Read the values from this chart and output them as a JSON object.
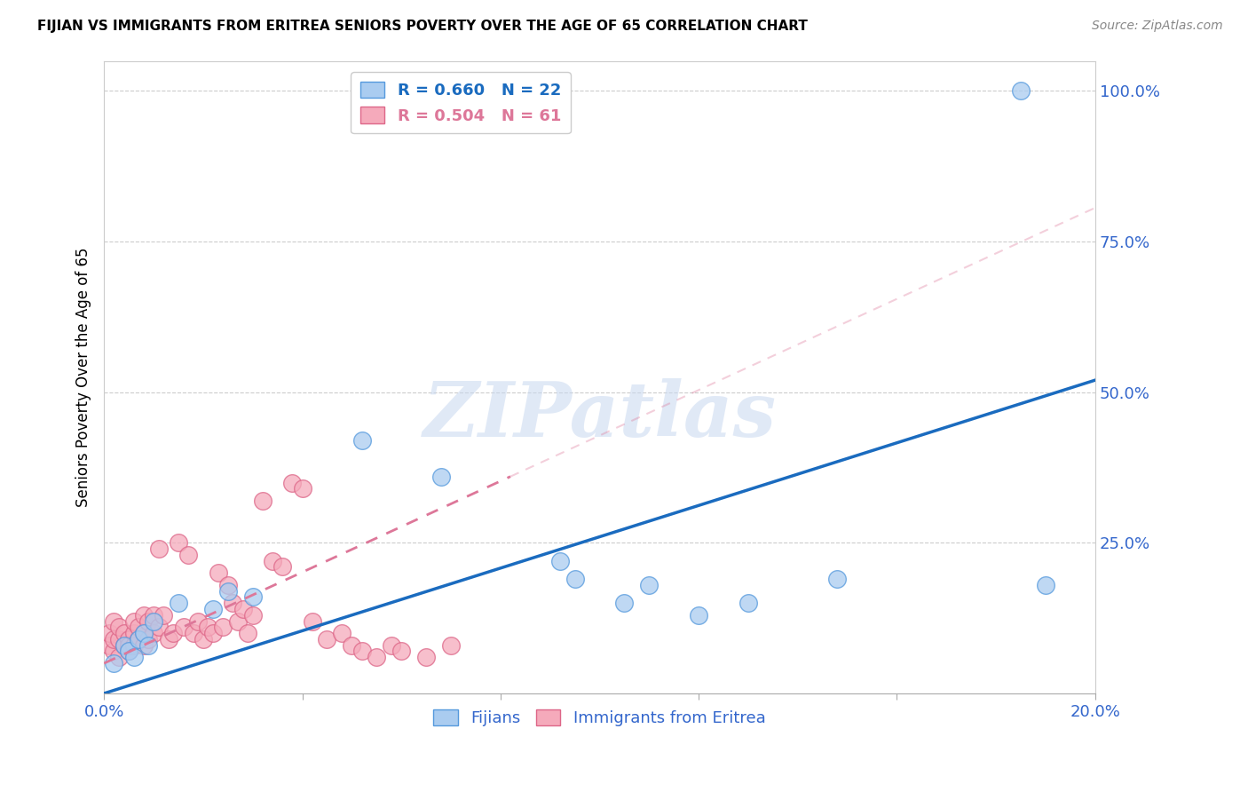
{
  "title": "FIJIAN VS IMMIGRANTS FROM ERITREA SENIORS POVERTY OVER THE AGE OF 65 CORRELATION CHART",
  "source": "Source: ZipAtlas.com",
  "ylabel": "Seniors Poverty Over the Age of 65",
  "xlim": [
    0.0,
    0.2
  ],
  "ylim": [
    0.0,
    1.05
  ],
  "xticks": [
    0.0,
    0.04,
    0.08,
    0.12,
    0.16,
    0.2
  ],
  "xticklabels": [
    "0.0%",
    "",
    "",
    "",
    "",
    "20.0%"
  ],
  "ytick_positions": [
    0.25,
    0.5,
    0.75,
    1.0
  ],
  "ytick_labels": [
    "25.0%",
    "50.0%",
    "75.0%",
    "100.0%"
  ],
  "fijian_color": "#aaccf0",
  "eritrea_color": "#f5aabb",
  "fijian_edge_color": "#5599dd",
  "eritrea_edge_color": "#dd6688",
  "fijian_line_color": "#1a6bbf",
  "eritrea_line_color": "#dd7799",
  "watermark": "ZIPatlas",
  "watermark_color": "#c8d8f0",
  "tick_color": "#3366cc",
  "title_fontsize": 11,
  "tick_fontsize": 13,
  "fijian_x": [
    0.002,
    0.004,
    0.005,
    0.006,
    0.007,
    0.008,
    0.009,
    0.01,
    0.015,
    0.022,
    0.025,
    0.03,
    0.052,
    0.068,
    0.092,
    0.095,
    0.105,
    0.11,
    0.12,
    0.13,
    0.148,
    0.19,
    0.185
  ],
  "fijian_y": [
    0.05,
    0.08,
    0.07,
    0.06,
    0.09,
    0.1,
    0.08,
    0.12,
    0.15,
    0.14,
    0.17,
    0.16,
    0.42,
    0.36,
    0.22,
    0.19,
    0.15,
    0.18,
    0.13,
    0.15,
    0.19,
    0.18,
    1.0
  ],
  "eritrea_x": [
    0.001,
    0.001,
    0.002,
    0.002,
    0.002,
    0.003,
    0.003,
    0.003,
    0.004,
    0.004,
    0.005,
    0.005,
    0.005,
    0.006,
    0.006,
    0.006,
    0.007,
    0.007,
    0.008,
    0.008,
    0.008,
    0.009,
    0.009,
    0.01,
    0.01,
    0.011,
    0.011,
    0.012,
    0.013,
    0.014,
    0.015,
    0.016,
    0.017,
    0.018,
    0.019,
    0.02,
    0.021,
    0.022,
    0.023,
    0.024,
    0.025,
    0.026,
    0.027,
    0.028,
    0.029,
    0.03,
    0.032,
    0.034,
    0.036,
    0.038,
    0.04,
    0.042,
    0.045,
    0.048,
    0.05,
    0.052,
    0.055,
    0.058,
    0.06,
    0.065,
    0.07
  ],
  "eritrea_y": [
    0.08,
    0.1,
    0.07,
    0.09,
    0.12,
    0.06,
    0.09,
    0.11,
    0.08,
    0.1,
    0.07,
    0.09,
    0.08,
    0.1,
    0.12,
    0.08,
    0.09,
    0.11,
    0.08,
    0.13,
    0.1,
    0.09,
    0.12,
    0.1,
    0.13,
    0.11,
    0.24,
    0.13,
    0.09,
    0.1,
    0.25,
    0.11,
    0.23,
    0.1,
    0.12,
    0.09,
    0.11,
    0.1,
    0.2,
    0.11,
    0.18,
    0.15,
    0.12,
    0.14,
    0.1,
    0.13,
    0.32,
    0.22,
    0.21,
    0.35,
    0.34,
    0.12,
    0.09,
    0.1,
    0.08,
    0.07,
    0.06,
    0.08,
    0.07,
    0.06,
    0.08
  ],
  "blue_line_x0": 0.0,
  "blue_line_y0": 0.0,
  "blue_line_x1": 0.2,
  "blue_line_y1": 0.52,
  "pink_line_x0": 0.0,
  "pink_line_y0": 0.05,
  "pink_line_x1": 0.082,
  "pink_line_y1": 0.36
}
